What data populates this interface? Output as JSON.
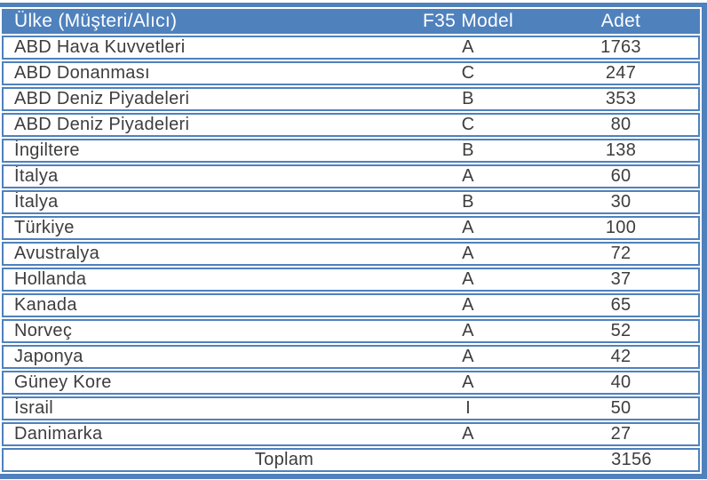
{
  "colors": {
    "accent": "#4F81BD",
    "text": "#3D3D3D",
    "header_text": "#FFFFFF",
    "row_background": "#FFFFFF"
  },
  "table": {
    "columns": {
      "country": "Ülke (Müşteri/Alıcı)",
      "model": "F35 Model",
      "count": "Adet"
    },
    "rows": [
      {
        "country": "ABD Hava Kuvvetleri",
        "model": "A",
        "count": "1763"
      },
      {
        "country": "ABD Donanması",
        "model": "C",
        "count": "247"
      },
      {
        "country": "ABD Deniz Piyadeleri",
        "model": "B",
        "count": "353"
      },
      {
        "country": "ABD Deniz Piyadeleri",
        "model": "C",
        "count": "80"
      },
      {
        "country": "İngiltere",
        "model": "B",
        "count": "138"
      },
      {
        "country": "İtalya",
        "model": "A",
        "count": "60"
      },
      {
        "country": "İtalya",
        "model": "B",
        "count": "30"
      },
      {
        "country": "Türkiye",
        "model": "A",
        "count": "100"
      },
      {
        "country": "Avustralya",
        "model": "A",
        "count": "72"
      },
      {
        "country": "Hollanda",
        "model": "A",
        "count": "37"
      },
      {
        "country": "Kanada",
        "model": "A",
        "count": "65"
      },
      {
        "country": "Norveç",
        "model": "A",
        "count": "52"
      },
      {
        "country": "Japonya",
        "model": "A",
        "count": "42"
      },
      {
        "country": "Güney Kore",
        "model": "A",
        "count": "40"
      },
      {
        "country": "İsrail",
        "model": "I",
        "count": "50"
      },
      {
        "country": "Danimarka",
        "model": "A",
        "count": "27"
      }
    ],
    "total": {
      "label": "Toplam",
      "value": "3156"
    }
  }
}
